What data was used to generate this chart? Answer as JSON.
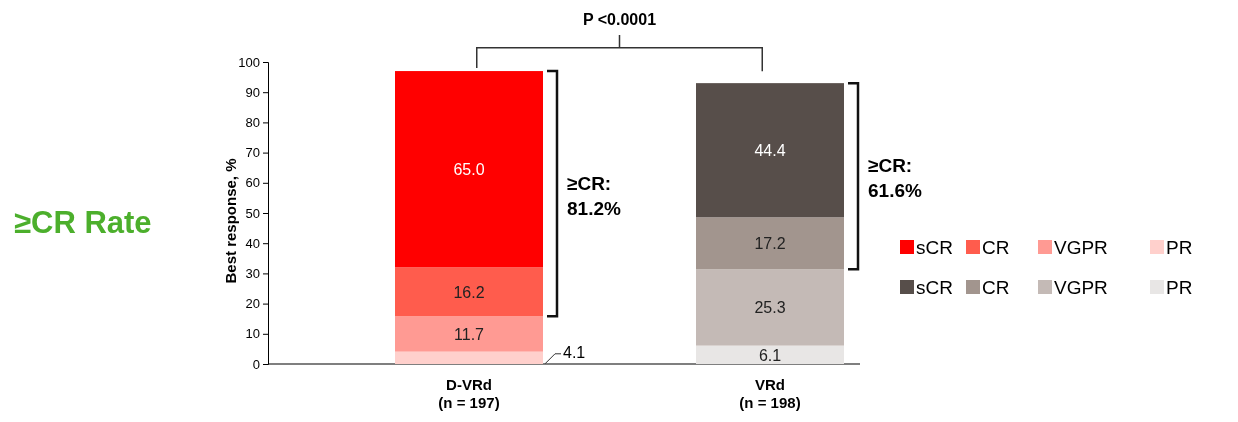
{
  "chart_data": {
    "type": "bar",
    "stacked": true,
    "ylabel": "Best response, %",
    "categories": [
      "D-VRd\n(n = 197)",
      "VRd\n(n = 198)"
    ],
    "series": [
      {
        "name": "sCR",
        "colors": [
          "#ff0000",
          "#574e4a"
        ],
        "values": [
          65.0,
          44.4
        ],
        "value_labels": [
          "65.0",
          "44.4"
        ]
      },
      {
        "name": "CR",
        "colors": [
          "#ff5c4d",
          "#a2958e"
        ],
        "values": [
          16.2,
          17.2
        ],
        "value_labels": [
          "16.2",
          "17.2"
        ]
      },
      {
        "name": "VGPR",
        "colors": [
          "#ff9a93",
          "#c4bab6"
        ],
        "values": [
          11.7,
          25.3
        ],
        "value_labels": [
          "11.7",
          "25.3"
        ]
      },
      {
        "name": "PR",
        "colors": [
          "#ffd0cc",
          "#e8e6e5"
        ],
        "values": [
          4.1,
          6.1
        ],
        "value_labels": [
          "4.1",
          "6.1"
        ]
      }
    ],
    "ylim": [
      0,
      100
    ],
    "yticks": [
      0,
      10,
      20,
      30,
      40,
      50,
      60,
      70,
      80,
      90,
      100
    ],
    "grid": false,
    "legend": "right",
    "data_labels": true,
    "annotations": [
      "≥CR Rate",
      "P <0.0001",
      "≥CR:\n81.2%",
      "≥CR:\n61.6%"
    ]
  }
}
